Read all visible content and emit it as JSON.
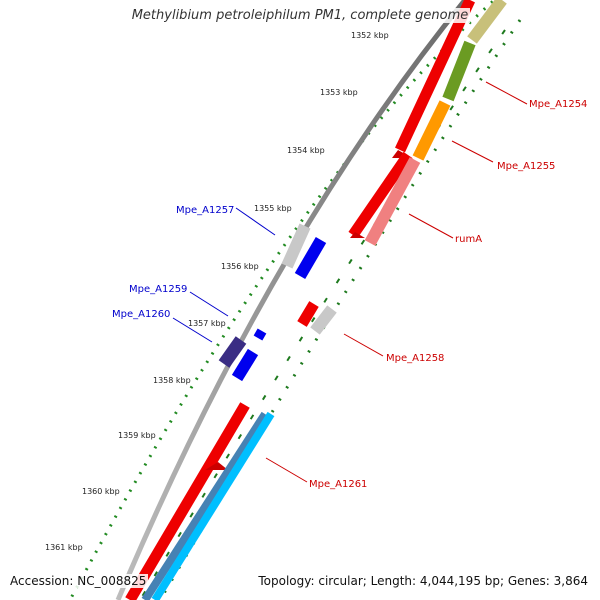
{
  "header": {
    "title": "Methylibium petroleiphilum PM1, complete genome"
  },
  "footer": {
    "accession": "Accession: NC_008825",
    "topology": "Topology: circular; Length: 4,044,195 bp; Genes: 3,864"
  },
  "scale": {
    "ticks": [
      "1352 kbp",
      "1353 kbp",
      "1354 kbp",
      "1355 kbp",
      "1356 kbp",
      "1357 kbp",
      "1358 kbp",
      "1359 kbp",
      "1360 kbp",
      "1361 kbp"
    ]
  },
  "gene_labels": {
    "forward": [
      "Mpe_A1254",
      "Mpe_A1255",
      "rumA",
      "Mpe_A1258",
      "Mpe_A1261"
    ],
    "reverse": [
      "Mpe_A1257",
      "Mpe_A1259",
      "Mpe_A1260"
    ]
  },
  "colors": {
    "backbone": "#8a8a8a",
    "forward_cds": "#ee0000",
    "reverse_cds": "#0000ee",
    "label_forward": "#cc0000",
    "label_reverse": "#0000cc",
    "tick_dots": "#228b22",
    "skew_marks": "#1e7a1e"
  }
}
